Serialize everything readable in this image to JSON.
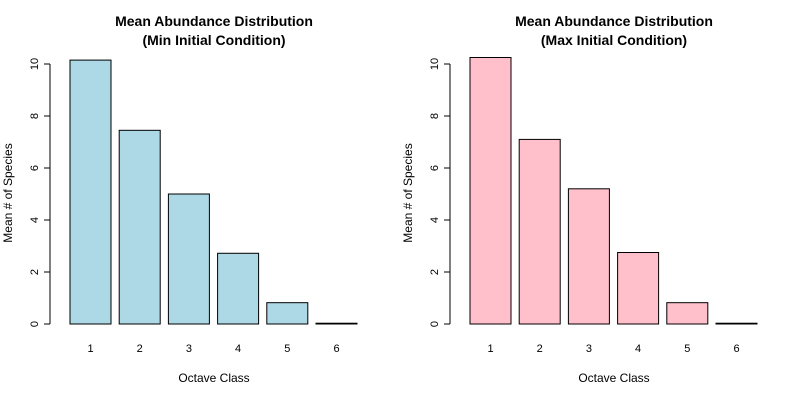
{
  "chart_data": [
    {
      "type": "bar",
      "title": "Mean Abundance Distribution",
      "subtitle": "(Min Initial Condition)",
      "xlabel": "Octave Class",
      "ylabel": "Mean # of Species",
      "categories": [
        "1",
        "2",
        "3",
        "4",
        "5",
        "6"
      ],
      "values": [
        10.15,
        7.45,
        5.0,
        2.72,
        0.82,
        0.03
      ],
      "yticks": [
        "0",
        "2",
        "4",
        "6",
        "8",
        "10"
      ],
      "ylim": [
        0,
        10
      ],
      "bar_color": "#ADD8E6",
      "grid": false,
      "legend": "none"
    },
    {
      "type": "bar",
      "title": "Mean Abundance Distribution",
      "subtitle": "(Max Initial Condition)",
      "xlabel": "Octave Class",
      "ylabel": "Mean # of Species",
      "categories": [
        "1",
        "2",
        "3",
        "4",
        "5",
        "6"
      ],
      "values": [
        10.25,
        7.1,
        5.2,
        2.75,
        0.82,
        0.03
      ],
      "yticks": [
        "0",
        "2",
        "4",
        "6",
        "8",
        "10"
      ],
      "ylim": [
        0,
        10
      ],
      "bar_color": "#FFC0CB",
      "grid": false,
      "legend": "none"
    }
  ]
}
